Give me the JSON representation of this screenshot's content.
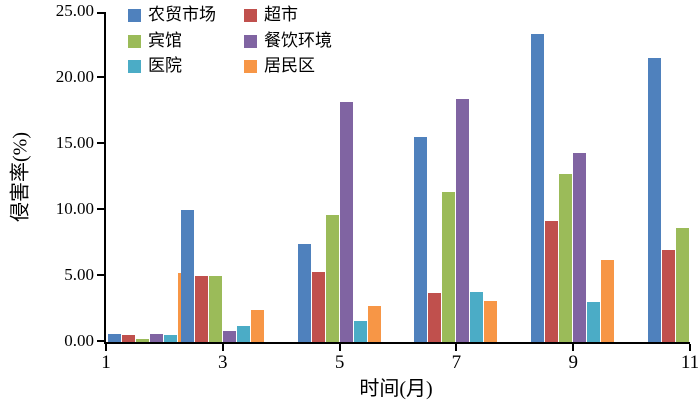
{
  "chart_data": {
    "type": "bar",
    "xlabel": "时间(月)",
    "ylabel": "侵害率(%)",
    "ylim": [
      0,
      25
    ],
    "ytick_step": 5,
    "ytick_labels": [
      "0.00",
      "5.00",
      "10.00",
      "15.00",
      "20.00",
      "25.00"
    ],
    "categories": [
      "1",
      "3",
      "5",
      "7",
      "9",
      "11"
    ],
    "legend_position": "top-left-inside",
    "grid": false,
    "series": [
      {
        "name": "农贸市场",
        "color": "#4F81BD",
        "values": [
          0.6,
          10.0,
          7.4,
          15.5,
          23.3,
          21.5
        ]
      },
      {
        "name": "超市",
        "color": "#C0504D",
        "values": [
          0.5,
          5.0,
          5.3,
          3.7,
          9.2,
          7.0
        ]
      },
      {
        "name": "宾馆",
        "color": "#9BBB59",
        "values": [
          0.2,
          5.0,
          9.6,
          11.4,
          12.7,
          8.6
        ]
      },
      {
        "name": "餐饮环境",
        "color": "#8064A2",
        "values": [
          0.6,
          0.8,
          18.2,
          18.4,
          14.3,
          null
        ]
      },
      {
        "name": "医院",
        "color": "#4BACC6",
        "values": [
          0.5,
          1.2,
          1.6,
          3.8,
          3.0,
          null
        ]
      },
      {
        "name": "居民区",
        "color": "#F79646",
        "values": [
          5.2,
          2.4,
          2.7,
          3.1,
          6.2,
          null
        ]
      }
    ]
  }
}
